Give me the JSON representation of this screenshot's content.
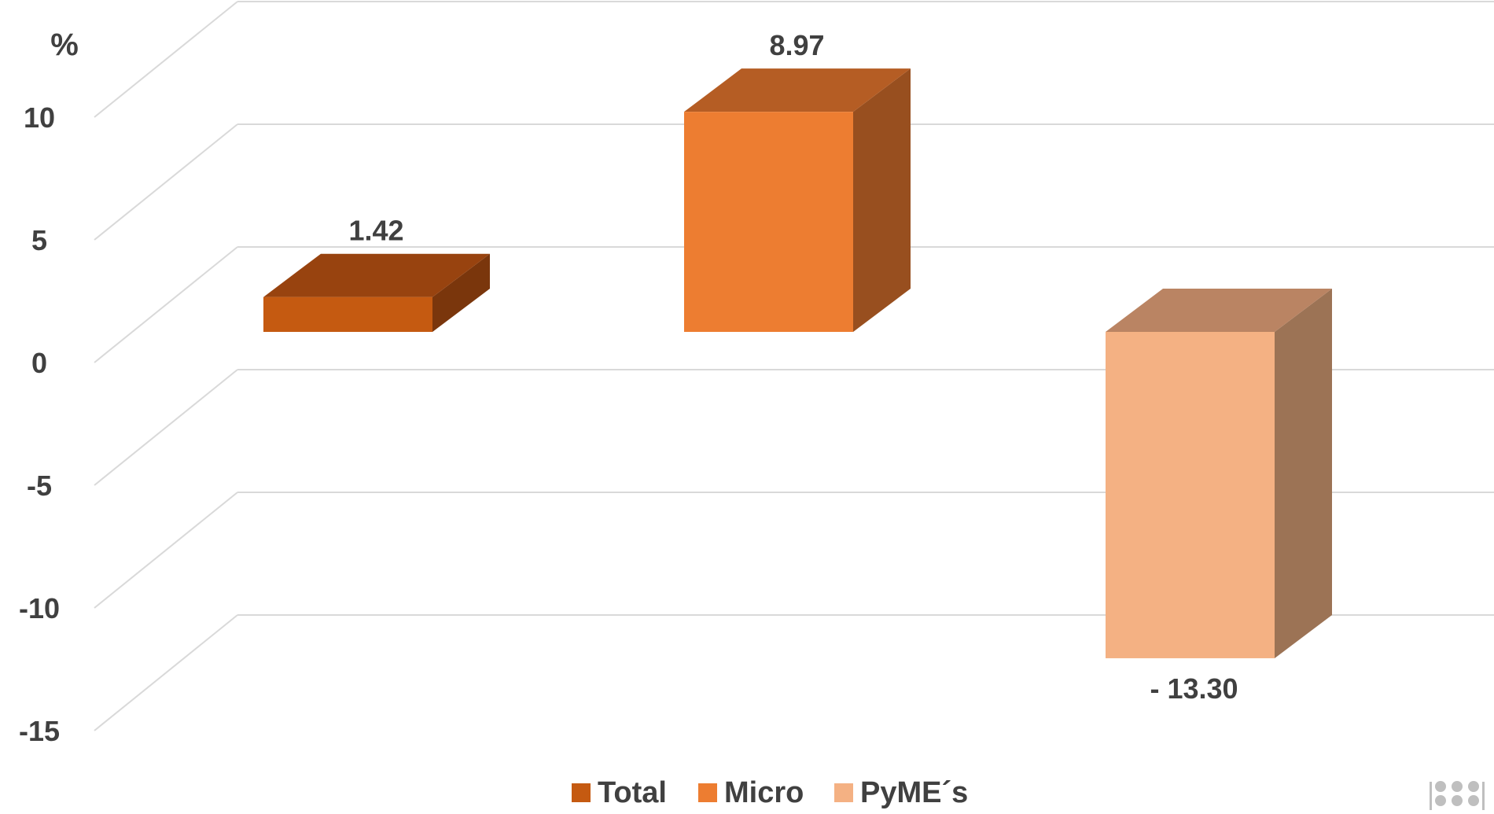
{
  "chart_data": {
    "type": "bar",
    "ylabel": "%",
    "ylim": [
      -15,
      10
    ],
    "yticks": [
      10,
      5,
      0,
      -5,
      -10,
      -15
    ],
    "grid": true,
    "legend_position": "bottom",
    "series": [
      {
        "name": "Total",
        "value": 1.42,
        "label": "1.42",
        "colors": {
          "front": "#C55A11",
          "top": "#98430F",
          "side": "#7A360C"
        }
      },
      {
        "name": "Micro",
        "value": 8.97,
        "label": "8.97",
        "colors": {
          "front": "#ED7D31",
          "top": "#B55D24",
          "side": "#984F1F"
        }
      },
      {
        "name": "PyME´s",
        "value": -13.3,
        "label": "-  13.30",
        "colors": {
          "front": "#F4B183",
          "top": "#BA8463",
          "side": "#9C7355"
        }
      }
    ],
    "colors": {
      "grid": "#D9D9D9",
      "text": "#404040"
    }
  }
}
